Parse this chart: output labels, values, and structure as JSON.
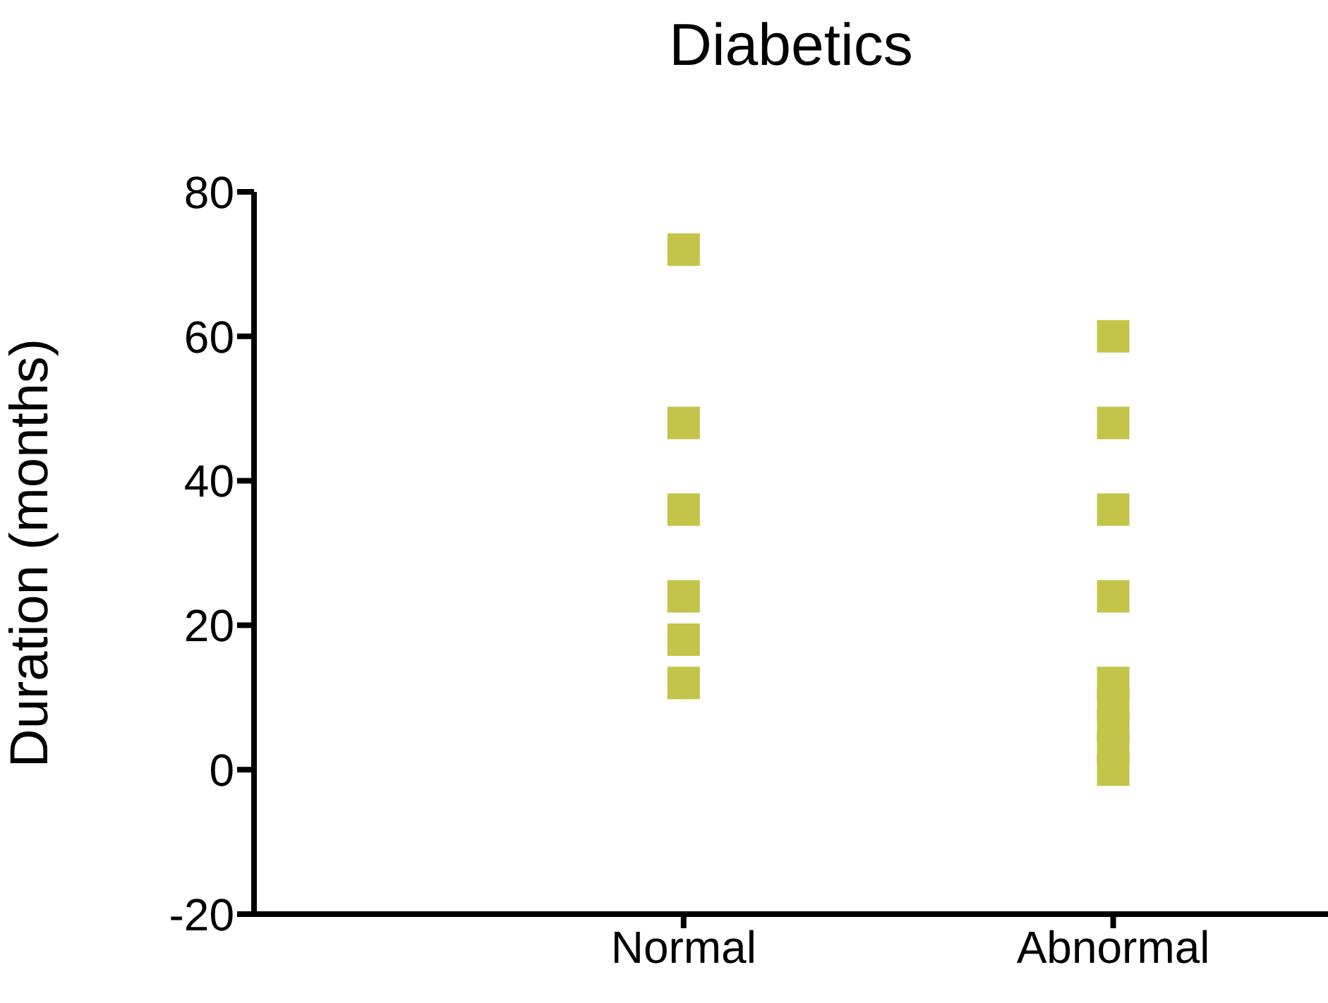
{
  "chart_data": {
    "type": "scatter",
    "title": "Diabetics",
    "ylabel": "Duration (months)",
    "categories": [
      "Normal",
      "Abnormal"
    ],
    "series": [
      {
        "color": "#c4c44a",
        "x": [
          "Normal",
          "Normal",
          "Normal",
          "Normal",
          "Normal",
          "Normal",
          "Abnormal",
          "Abnormal",
          "Abnormal",
          "Abnormal",
          "Abnormal",
          "Abnormal",
          "Abnormal",
          "Abnormal",
          "Abnormal"
        ],
        "values": [
          72,
          48,
          36,
          24,
          18,
          12,
          60,
          48,
          36,
          24,
          12,
          9,
          6,
          3,
          0
        ]
      }
    ],
    "ylim": [
      -20,
      80
    ],
    "yticks": [
      -20,
      0,
      20,
      40,
      60,
      80
    ],
    "marker": "square",
    "grid": false,
    "legend": false
  }
}
